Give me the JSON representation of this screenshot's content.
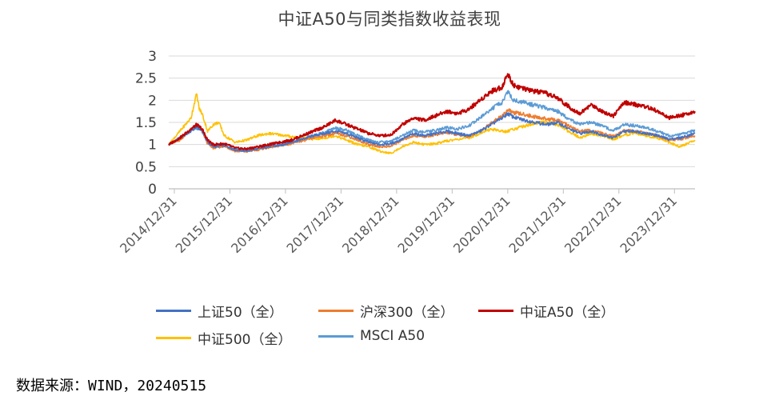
{
  "chart_data": {
    "type": "line",
    "title": "中证A50与同类指数收益表现",
    "xlabel": "",
    "ylabel": "",
    "ylim": [
      0,
      3
    ],
    "yticks": [
      0,
      0.5,
      1,
      1.5,
      2,
      2.5,
      3
    ],
    "ytick_labels": [
      "0",
      "0.5",
      "1",
      "1.5",
      "2",
      "2.5",
      "3"
    ],
    "xlim": [
      2014.9,
      2024.37
    ],
    "xticks": [
      2015.0,
      2016.0,
      2017.0,
      2018.0,
      2019.0,
      2020.0,
      2021.0,
      2022.0,
      2023.0,
      2024.0
    ],
    "xtick_labels": [
      "2014/12/31",
      "2015/12/31",
      "2016/12/31",
      "2017/12/31",
      "2018/12/31",
      "2019/12/31",
      "2020/12/31",
      "2021/12/31",
      "2022/12/31",
      "2023/12/31"
    ],
    "grid": "horizontal",
    "legend_position": "bottom",
    "series": [
      {
        "name": "上证50（全）",
        "color": "#4472C4",
        "x": [
          2014.9,
          2015.1,
          2015.3,
          2015.4,
          2015.5,
          2015.6,
          2015.7,
          2015.9,
          2016.1,
          2016.3,
          2016.5,
          2016.7,
          2016.9,
          2017.1,
          2017.3,
          2017.5,
          2017.7,
          2017.9,
          2018.1,
          2018.3,
          2018.5,
          2018.7,
          2018.9,
          2019.1,
          2019.3,
          2019.5,
          2019.7,
          2019.9,
          2020.1,
          2020.3,
          2020.5,
          2020.7,
          2020.9,
          2021.0,
          2021.1,
          2021.3,
          2021.5,
          2021.7,
          2021.9,
          2022.1,
          2022.3,
          2022.5,
          2022.7,
          2022.9,
          2023.1,
          2023.3,
          2023.5,
          2023.7,
          2023.9,
          2024.1,
          2024.37
        ],
        "values": [
          1.0,
          1.15,
          1.3,
          1.4,
          1.32,
          1.05,
          0.95,
          0.98,
          0.88,
          0.86,
          0.9,
          0.95,
          0.98,
          1.05,
          1.12,
          1.2,
          1.25,
          1.3,
          1.25,
          1.15,
          1.05,
          1.0,
          1.02,
          1.12,
          1.25,
          1.2,
          1.25,
          1.3,
          1.25,
          1.2,
          1.3,
          1.45,
          1.6,
          1.7,
          1.62,
          1.55,
          1.5,
          1.45,
          1.5,
          1.35,
          1.25,
          1.3,
          1.22,
          1.15,
          1.3,
          1.3,
          1.25,
          1.2,
          1.12,
          1.15,
          1.25
        ]
      },
      {
        "name": "沪深300（全）",
        "color": "#ED7D31",
        "x": [
          2014.9,
          2015.1,
          2015.3,
          2015.4,
          2015.5,
          2015.6,
          2015.7,
          2015.9,
          2016.1,
          2016.3,
          2016.5,
          2016.7,
          2016.9,
          2017.1,
          2017.3,
          2017.5,
          2017.7,
          2017.9,
          2018.1,
          2018.3,
          2018.5,
          2018.7,
          2018.9,
          2019.1,
          2019.3,
          2019.5,
          2019.7,
          2019.9,
          2020.1,
          2020.3,
          2020.5,
          2020.7,
          2020.9,
          2021.0,
          2021.1,
          2021.3,
          2021.5,
          2021.7,
          2021.9,
          2022.1,
          2022.3,
          2022.5,
          2022.7,
          2022.9,
          2023.1,
          2023.3,
          2023.5,
          2023.7,
          2023.9,
          2024.1,
          2024.37
        ],
        "values": [
          1.0,
          1.1,
          1.35,
          1.42,
          1.3,
          1.02,
          0.92,
          0.96,
          0.85,
          0.84,
          0.88,
          0.93,
          0.97,
          1.02,
          1.08,
          1.15,
          1.2,
          1.25,
          1.2,
          1.1,
          1.0,
          0.95,
          0.96,
          1.1,
          1.2,
          1.18,
          1.22,
          1.27,
          1.22,
          1.18,
          1.3,
          1.48,
          1.65,
          1.78,
          1.72,
          1.68,
          1.62,
          1.58,
          1.55,
          1.42,
          1.3,
          1.32,
          1.25,
          1.18,
          1.32,
          1.3,
          1.25,
          1.2,
          1.1,
          1.12,
          1.2
        ]
      },
      {
        "name": "中证A50（全）",
        "color": "#C00000",
        "x": [
          2014.9,
          2015.1,
          2015.3,
          2015.4,
          2015.5,
          2015.6,
          2015.7,
          2015.9,
          2016.1,
          2016.3,
          2016.5,
          2016.7,
          2016.9,
          2017.1,
          2017.3,
          2017.5,
          2017.7,
          2017.9,
          2018.1,
          2018.3,
          2018.5,
          2018.7,
          2018.9,
          2019.1,
          2019.3,
          2019.5,
          2019.7,
          2019.9,
          2020.1,
          2020.3,
          2020.5,
          2020.7,
          2020.9,
          2021.0,
          2021.1,
          2021.3,
          2021.5,
          2021.7,
          2021.9,
          2022.1,
          2022.3,
          2022.5,
          2022.7,
          2022.9,
          2023.1,
          2023.3,
          2023.5,
          2023.7,
          2023.9,
          2024.1,
          2024.37
        ],
        "values": [
          1.0,
          1.15,
          1.35,
          1.45,
          1.35,
          1.1,
          1.0,
          1.02,
          0.92,
          0.9,
          0.95,
          1.0,
          1.05,
          1.1,
          1.2,
          1.3,
          1.4,
          1.55,
          1.45,
          1.35,
          1.25,
          1.2,
          1.22,
          1.45,
          1.6,
          1.55,
          1.65,
          1.75,
          1.7,
          1.8,
          2.0,
          2.2,
          2.3,
          2.6,
          2.35,
          2.25,
          2.2,
          2.15,
          2.05,
          1.85,
          1.7,
          1.9,
          1.75,
          1.65,
          1.95,
          1.9,
          1.85,
          1.75,
          1.6,
          1.65,
          1.75
        ]
      },
      {
        "name": "中证500（全）",
        "color": "#FFC000",
        "x": [
          2014.9,
          2015.1,
          2015.3,
          2015.4,
          2015.45,
          2015.5,
          2015.6,
          2015.7,
          2015.8,
          2015.9,
          2016.1,
          2016.3,
          2016.5,
          2016.7,
          2016.9,
          2017.1,
          2017.3,
          2017.5,
          2017.7,
          2017.9,
          2018.1,
          2018.3,
          2018.5,
          2018.7,
          2018.9,
          2019.1,
          2019.3,
          2019.5,
          2019.7,
          2019.9,
          2020.1,
          2020.3,
          2020.5,
          2020.7,
          2020.9,
          2021.0,
          2021.1,
          2021.3,
          2021.5,
          2021.7,
          2021.9,
          2022.1,
          2022.3,
          2022.5,
          2022.7,
          2022.9,
          2023.1,
          2023.3,
          2023.5,
          2023.7,
          2023.9,
          2024.1,
          2024.37
        ],
        "values": [
          1.0,
          1.3,
          1.6,
          2.15,
          1.8,
          1.7,
          1.3,
          1.45,
          1.5,
          1.2,
          1.05,
          1.1,
          1.2,
          1.25,
          1.22,
          1.18,
          1.15,
          1.12,
          1.15,
          1.2,
          1.1,
          1.0,
          0.95,
          0.85,
          0.8,
          0.95,
          1.05,
          1.0,
          1.02,
          1.08,
          1.12,
          1.15,
          1.25,
          1.35,
          1.3,
          1.3,
          1.35,
          1.42,
          1.48,
          1.5,
          1.45,
          1.3,
          1.15,
          1.25,
          1.2,
          1.12,
          1.22,
          1.25,
          1.2,
          1.15,
          1.05,
          0.95,
          1.1
        ]
      },
      {
        "name": "MSCI A50",
        "color": "#5B9BD5",
        "x": [
          2014.9,
          2015.1,
          2015.3,
          2015.4,
          2015.5,
          2015.6,
          2015.7,
          2015.9,
          2016.1,
          2016.3,
          2016.5,
          2016.7,
          2016.9,
          2017.1,
          2017.3,
          2017.5,
          2017.7,
          2017.9,
          2018.1,
          2018.3,
          2018.5,
          2018.7,
          2018.9,
          2019.1,
          2019.3,
          2019.5,
          2019.7,
          2019.9,
          2020.1,
          2020.3,
          2020.5,
          2020.7,
          2020.9,
          2021.0,
          2021.1,
          2021.3,
          2021.5,
          2021.7,
          2021.9,
          2022.1,
          2022.3,
          2022.5,
          2022.7,
          2022.9,
          2023.1,
          2023.3,
          2023.5,
          2023.7,
          2023.9,
          2024.1,
          2024.37
        ],
        "values": [
          1.0,
          1.12,
          1.32,
          1.38,
          1.3,
          1.05,
          0.95,
          0.97,
          0.88,
          0.85,
          0.9,
          0.95,
          0.98,
          1.05,
          1.12,
          1.2,
          1.28,
          1.38,
          1.32,
          1.2,
          1.1,
          1.05,
          1.08,
          1.2,
          1.32,
          1.28,
          1.32,
          1.38,
          1.35,
          1.42,
          1.6,
          1.8,
          1.95,
          2.2,
          2.0,
          1.95,
          1.88,
          1.82,
          1.75,
          1.58,
          1.45,
          1.5,
          1.42,
          1.32,
          1.45,
          1.42,
          1.38,
          1.3,
          1.2,
          1.22,
          1.32
        ]
      }
    ]
  },
  "source_note": "数据来源：WIND，20240515"
}
